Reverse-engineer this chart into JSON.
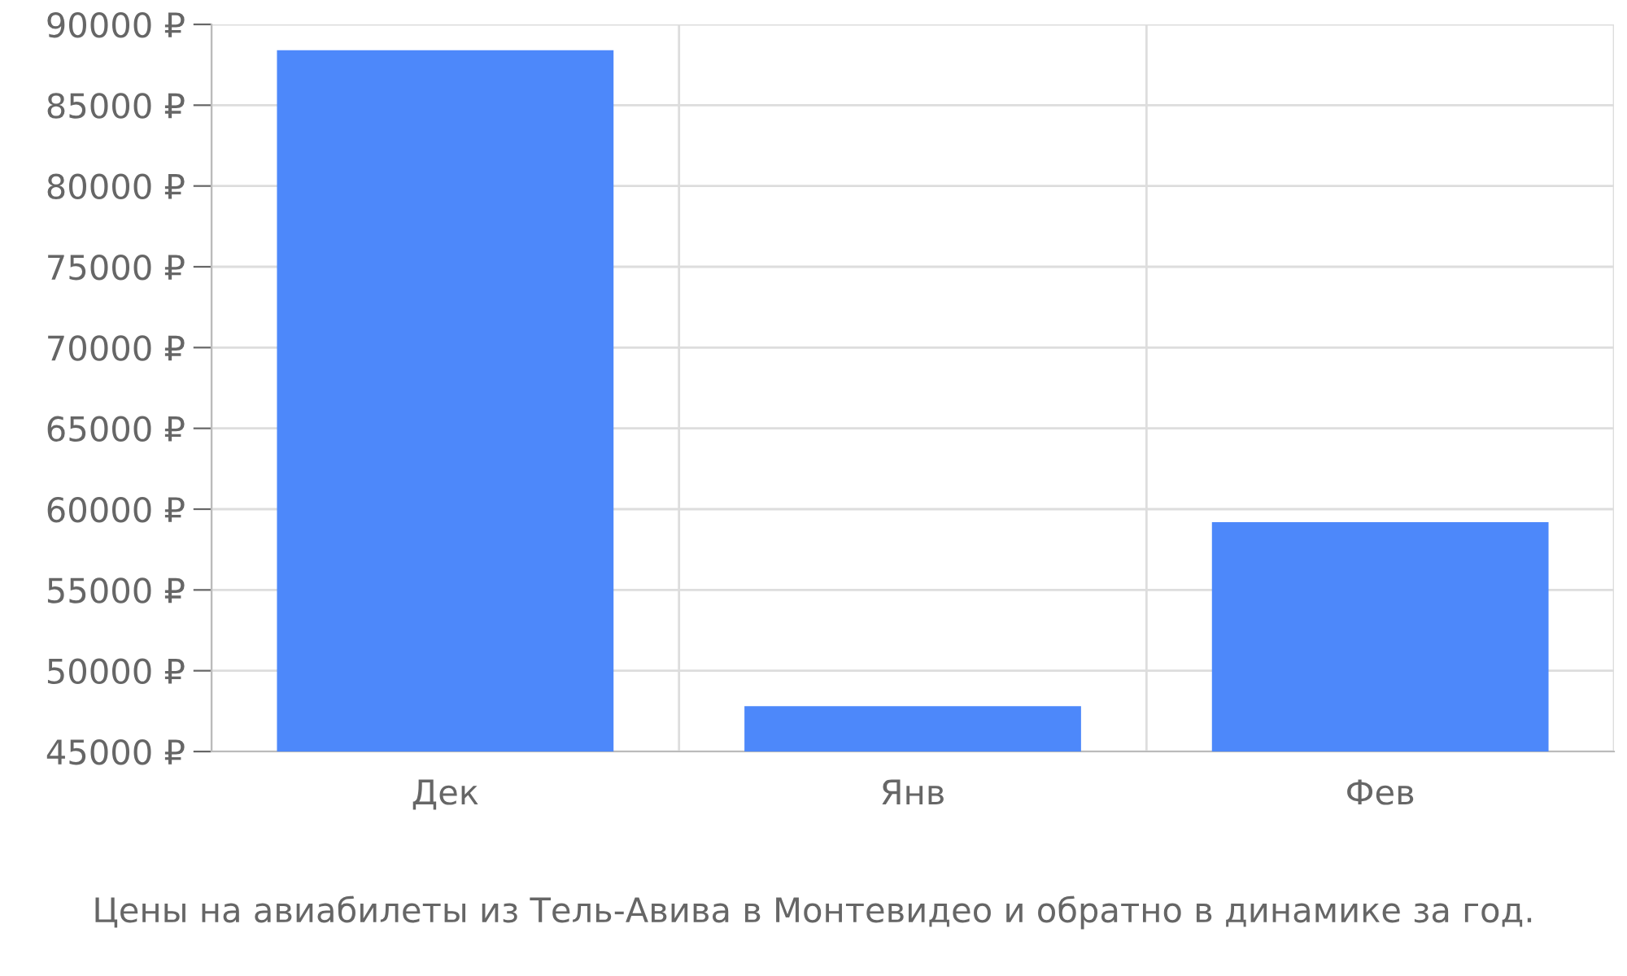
{
  "chart_data": {
    "type": "bar",
    "categories": [
      "Дек",
      "Янв",
      "Фев"
    ],
    "values": [
      88400,
      47800,
      59200
    ],
    "color": "#4d88fa",
    "ylim": [
      45000,
      90000
    ],
    "yticks": [
      {
        "value": 45000,
        "label": "45000 ₽"
      },
      {
        "value": 50000,
        "label": "50000 ₽"
      },
      {
        "value": 55000,
        "label": "55000 ₽"
      },
      {
        "value": 60000,
        "label": "60000 ₽"
      },
      {
        "value": 65000,
        "label": "65000 ₽"
      },
      {
        "value": 70000,
        "label": "70000 ₽"
      },
      {
        "value": 75000,
        "label": "75000 ₽"
      },
      {
        "value": 80000,
        "label": "80000 ₽"
      },
      {
        "value": 85000,
        "label": "85000 ₽"
      },
      {
        "value": 90000,
        "label": "90000 ₽"
      }
    ],
    "grid": true,
    "annotations": [
      "Цены на авиабилеты из Тель-Авива в Монтевидео и обратно в динамике за год."
    ]
  }
}
